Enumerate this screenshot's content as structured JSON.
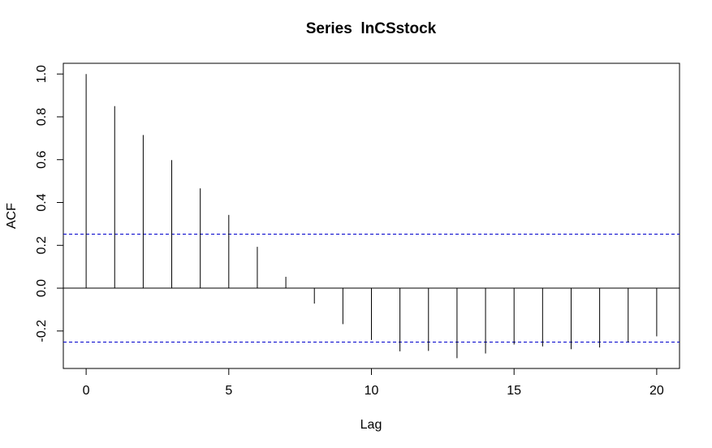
{
  "chart_data": {
    "type": "bar",
    "title": "Series  lnCSstock",
    "xlabel": "Lag",
    "ylabel": "ACF",
    "xlim": [
      -0.8,
      20.8
    ],
    "ylim": [
      -0.375,
      1.05
    ],
    "x_ticks": [
      0,
      5,
      10,
      15,
      20
    ],
    "x_tick_labels": [
      "0",
      "5",
      "10",
      "15",
      "20"
    ],
    "y_ticks": [
      -0.2,
      0.0,
      0.2,
      0.4,
      0.6,
      0.8,
      1.0
    ],
    "y_tick_labels": [
      "-0.2",
      "0.0",
      "0.2",
      "0.4",
      "0.6",
      "0.8",
      "1.0"
    ],
    "lags": [
      0,
      1,
      2,
      3,
      4,
      5,
      6,
      7,
      8,
      9,
      10,
      11,
      12,
      13,
      14,
      15,
      16,
      17,
      18,
      19,
      20
    ],
    "values": [
      1.0,
      0.85,
      0.715,
      0.598,
      0.466,
      0.342,
      0.193,
      0.053,
      -0.072,
      -0.168,
      -0.242,
      -0.295,
      -0.293,
      -0.327,
      -0.305,
      -0.263,
      -0.272,
      -0.285,
      -0.277,
      -0.252,
      -0.225
    ],
    "confidence_bounds": [
      0.252,
      -0.252
    ],
    "confidence_line_color": "#0000CC",
    "line_color": "#000000",
    "zero_line": true,
    "grid": false,
    "legend": "none"
  }
}
